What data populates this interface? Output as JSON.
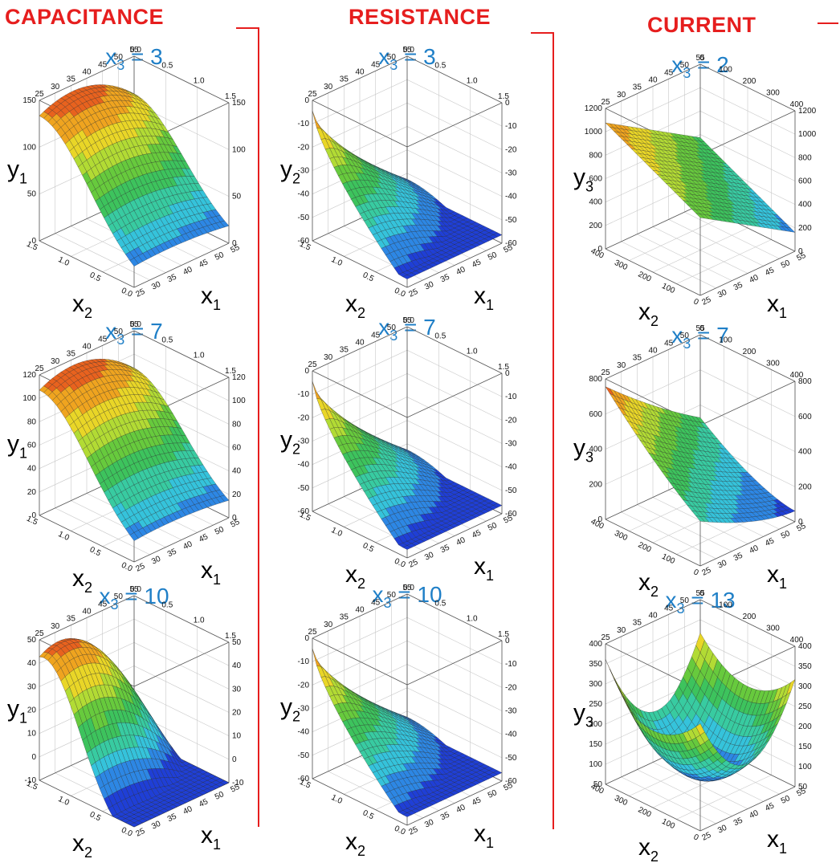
{
  "columns": [
    {
      "title": "CAPACITANCE",
      "color": "#e61e1e"
    },
    {
      "title": "RESISTANCE",
      "color": "#e61e1e"
    },
    {
      "title": "CURRENT",
      "color": "#e61e1e"
    }
  ],
  "condition_var": "x",
  "condition_sub": "3",
  "colormap": [
    "#1f3fd6",
    "#2f8fe6",
    "#36d0d8",
    "#39c98a",
    "#3fbf3f",
    "#8fd43a",
    "#e6e62a",
    "#f0b21f",
    "#ea6a1e",
    "#d31c1c"
  ],
  "chart_data": [
    {
      "type": "surface3d",
      "title": "CAPACITANCE",
      "condition": "x3 = 3",
      "condition_value": "3",
      "xlabel_sub": "1",
      "ylabel_sub": "2",
      "zlabel_sub": "1",
      "zlabel": "y",
      "x_ticks": [
        "25",
        "30",
        "35",
        "40",
        "45",
        "50",
        "55"
      ],
      "y_ticks": [
        "0.0",
        "0.5",
        "1.0",
        "1.5"
      ],
      "z_ticks": [
        "0",
        "50",
        "100",
        "150"
      ],
      "zlim": [
        0,
        190
      ],
      "surface": {
        "kind": "capacitance",
        "peak": 185,
        "drop": 1.0
      },
      "backwall_x_ticks": [
        "25",
        "30",
        "35",
        "40",
        "45",
        "50",
        "55"
      ],
      "backwall_y_ticks": [
        "1.5",
        "1.0",
        "0.5",
        "0.0"
      ]
    },
    {
      "type": "surface3d",
      "title": "CAPACITANCE",
      "condition": "x3 = 7",
      "condition_value": "7",
      "xlabel_sub": "1",
      "ylabel_sub": "2",
      "zlabel_sub": "1",
      "zlabel": "y",
      "x_ticks": [
        "25",
        "30",
        "35",
        "40",
        "45",
        "50",
        "55"
      ],
      "y_ticks": [
        "0.0",
        "0.5",
        "1.0",
        "1.5"
      ],
      "z_ticks": [
        "0",
        "20",
        "40",
        "60",
        "80",
        "100",
        "120"
      ],
      "zlim": [
        0,
        125
      ],
      "surface": {
        "kind": "capacitance",
        "peak": 122,
        "drop": 1.0
      },
      "backwall_x_ticks": [
        "25",
        "30",
        "35",
        "40",
        "45",
        "50",
        "55"
      ],
      "backwall_y_ticks": [
        "1.5",
        "1.0",
        "0.5",
        "0.0"
      ]
    },
    {
      "type": "surface3d",
      "title": "CAPACITANCE",
      "condition": "x3 = 10",
      "condition_value": "10",
      "xlabel_sub": "1",
      "ylabel_sub": "2",
      "zlabel_sub": "1",
      "zlabel": "y",
      "x_ticks": [
        "25",
        "30",
        "35",
        "40",
        "45",
        "50",
        "55"
      ],
      "y_ticks": [
        "0.0",
        "0.5",
        "1.0",
        "1.5"
      ],
      "z_ticks": [
        "-10",
        "0",
        "10",
        "20",
        "30",
        "40",
        "50"
      ],
      "zlim": [
        -12,
        55
      ],
      "surface": {
        "kind": "capacitance2",
        "peak": 54,
        "drop": 1.3
      },
      "backwall_x_ticks": [
        "25",
        "30",
        "35",
        "40",
        "45",
        "50",
        "55"
      ],
      "backwall_y_ticks": [
        "1.5",
        "1.0",
        "0.5",
        "0.0"
      ]
    },
    {
      "type": "surface3d",
      "title": "RESISTANCE",
      "condition": "x3 = 3",
      "condition_value": "3",
      "xlabel_sub": "1",
      "ylabel_sub": "2",
      "zlabel_sub": "2",
      "zlabel": "y",
      "x_ticks": [
        "25",
        "30",
        "35",
        "40",
        "45",
        "50",
        "55"
      ],
      "y_ticks": [
        "0.0",
        "0.5",
        "1.0",
        "1.5"
      ],
      "z_ticks": [
        "-60",
        "-50",
        "-40",
        "-30",
        "-20",
        "-10",
        "0"
      ],
      "zlim": [
        -62,
        5
      ],
      "surface": {
        "kind": "resistance"
      },
      "backwall_x_ticks": [
        "25",
        "30",
        "35",
        "40",
        "45",
        "50",
        "55"
      ],
      "backwall_y_ticks": [
        "1.5",
        "1.0",
        "0.5",
        "0.0"
      ]
    },
    {
      "type": "surface3d",
      "title": "RESISTANCE",
      "condition": "x3 = 7",
      "condition_value": "7",
      "xlabel_sub": "1",
      "ylabel_sub": "2",
      "zlabel_sub": "2",
      "zlabel": "y",
      "x_ticks": [
        "25",
        "30",
        "35",
        "40",
        "45",
        "50",
        "55"
      ],
      "y_ticks": [
        "0.0",
        "0.5",
        "1.0",
        "1.5"
      ],
      "z_ticks": [
        "-60",
        "-50",
        "-40",
        "-30",
        "-20",
        "-10",
        "0"
      ],
      "zlim": [
        -62,
        5
      ],
      "surface": {
        "kind": "resistance"
      },
      "backwall_x_ticks": [
        "25",
        "30",
        "35",
        "40",
        "45",
        "50",
        "55"
      ],
      "backwall_y_ticks": [
        "1.5",
        "1.0",
        "0.5",
        "0.0"
      ]
    },
    {
      "type": "surface3d",
      "title": "RESISTANCE",
      "condition": "x3 = 10",
      "condition_value": "10",
      "xlabel_sub": "1",
      "ylabel_sub": "2",
      "zlabel_sub": "2",
      "zlabel": "y",
      "x_ticks": [
        "25",
        "30",
        "35",
        "40",
        "45",
        "50",
        "55"
      ],
      "y_ticks": [
        "0.0",
        "0.5",
        "1.0",
        "1.5"
      ],
      "z_ticks": [
        "-60",
        "-50",
        "-40",
        "-30",
        "-20",
        "-10",
        "0"
      ],
      "zlim": [
        -62,
        5
      ],
      "surface": {
        "kind": "resistance"
      },
      "backwall_x_ticks": [
        "25",
        "30",
        "35",
        "40",
        "45",
        "50",
        "55"
      ],
      "backwall_y_ticks": [
        "1.5",
        "1.0",
        "0.5",
        "0.0"
      ]
    },
    {
      "type": "surface3d",
      "title": "CURRENT",
      "condition": "x3 = 2",
      "condition_value": "2",
      "xlabel_sub": "1",
      "ylabel_sub": "2",
      "zlabel_sub": "3",
      "zlabel": "y",
      "x_ticks": [
        "25",
        "30",
        "35",
        "40",
        "45",
        "50",
        "55"
      ],
      "y_ticks": [
        "0",
        "100",
        "200",
        "300",
        "400"
      ],
      "z_ticks": [
        "0",
        "200",
        "400",
        "600",
        "800",
        "1000",
        "1200"
      ],
      "zlim": [
        0,
        1250
      ],
      "surface": {
        "kind": "current_plane"
      },
      "backwall_x_ticks": [
        "25",
        "30",
        "35",
        "40",
        "45",
        "50",
        "55"
      ],
      "backwall_y_ticks": [
        "400",
        "300",
        "200",
        "100",
        "0"
      ]
    },
    {
      "type": "surface3d",
      "title": "CURRENT",
      "condition": "x3 = 7",
      "condition_value": "7",
      "xlabel_sub": "1",
      "ylabel_sub": "2",
      "zlabel_sub": "3",
      "zlabel": "y",
      "x_ticks": [
        "25",
        "30",
        "35",
        "40",
        "45",
        "50",
        "55"
      ],
      "y_ticks": [
        "0",
        "100",
        "200",
        "300",
        "400"
      ],
      "z_ticks": [
        "0",
        "200",
        "400",
        "600",
        "800"
      ],
      "zlim": [
        0,
        830
      ],
      "surface": {
        "kind": "current_mid"
      },
      "backwall_x_ticks": [
        "25",
        "30",
        "35",
        "40",
        "45",
        "50",
        "55"
      ],
      "backwall_y_ticks": [
        "400",
        "300",
        "200",
        "100",
        "0"
      ]
    },
    {
      "type": "surface3d",
      "title": "CURRENT",
      "condition": "x3 = 13",
      "condition_value": "13",
      "xlabel_sub": "1",
      "ylabel_sub": "2",
      "zlabel_sub": "3",
      "zlabel": "y",
      "x_ticks": [
        "25",
        "30",
        "35",
        "40",
        "45",
        "50",
        "55"
      ],
      "y_ticks": [
        "0",
        "100",
        "200",
        "300",
        "400"
      ],
      "z_ticks": [
        "50",
        "100",
        "150",
        "200",
        "250",
        "300",
        "350",
        "400"
      ],
      "zlim": [
        40,
        420
      ],
      "surface": {
        "kind": "current_bowl"
      },
      "backwall_x_ticks": [
        "25",
        "30",
        "35",
        "40",
        "45",
        "50",
        "55"
      ],
      "backwall_y_ticks": [
        "400",
        "300",
        "200",
        "100",
        "0"
      ]
    }
  ]
}
